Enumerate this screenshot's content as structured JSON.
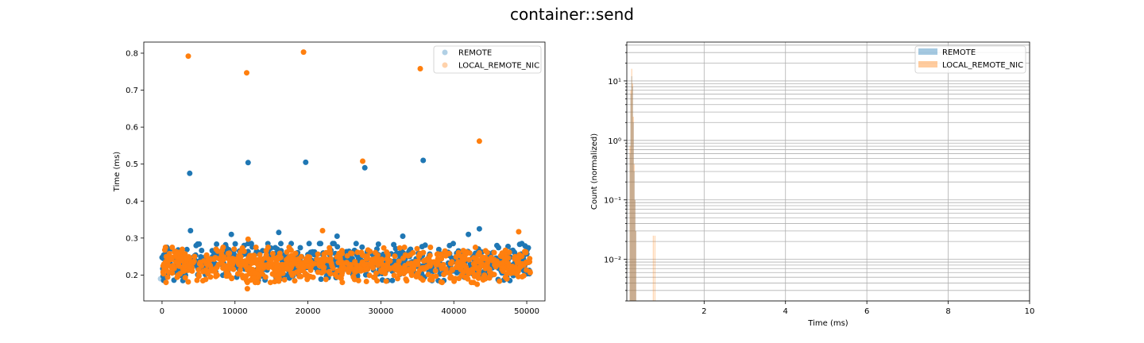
{
  "figure": {
    "title": "container::send"
  },
  "colors": {
    "remote": "#1f77b4",
    "local": "#ff7f0e",
    "grid": "#b0b0b0",
    "axes": "#000000"
  },
  "chart_data": [
    {
      "type": "scatter",
      "title": "",
      "xlabel": "",
      "ylabel": "Time (ms)",
      "xlim": [
        -2500,
        52500
      ],
      "ylim": [
        0.13,
        0.83
      ],
      "xticks": [
        0,
        10000,
        20000,
        30000,
        40000,
        50000
      ],
      "xtick_labels": [
        "0",
        "10000",
        "20000",
        "30000",
        "40000",
        "50000"
      ],
      "yticks": [
        0.2,
        0.3,
        0.4,
        0.5,
        0.6,
        0.7,
        0.8
      ],
      "ytick_labels": [
        "0.2",
        "0.3",
        "0.4",
        "0.5",
        "0.6",
        "0.7",
        "0.8"
      ],
      "grid": false,
      "legend_position": "top-right",
      "legend": [
        "REMOTE",
        "LOCAL_REMOTE_NIC"
      ],
      "series": [
        {
          "name": "REMOTE",
          "bulk": {
            "x_range": [
              0,
              50500
            ],
            "y_range": [
              0.185,
              0.285
            ],
            "count": 700
          },
          "outliers": [
            {
              "x": 3800,
              "y": 0.475
            },
            {
              "x": 11800,
              "y": 0.504
            },
            {
              "x": 19700,
              "y": 0.505
            },
            {
              "x": 27800,
              "y": 0.49
            },
            {
              "x": 35800,
              "y": 0.51
            },
            {
              "x": 3900,
              "y": 0.32
            },
            {
              "x": 43500,
              "y": 0.325
            },
            {
              "x": 16000,
              "y": 0.315
            },
            {
              "x": 24000,
              "y": 0.305
            },
            {
              "x": 33000,
              "y": 0.305
            },
            {
              "x": 9500,
              "y": 0.31
            },
            {
              "x": 42000,
              "y": 0.31
            }
          ]
        },
        {
          "name": "LOCAL_REMOTE_NIC",
          "bulk": {
            "x_range": [
              0,
              50500
            ],
            "y_range": [
              0.18,
              0.275
            ],
            "count": 800
          },
          "outliers": [
            {
              "x": 3600,
              "y": 0.792
            },
            {
              "x": 11600,
              "y": 0.747
            },
            {
              "x": 19400,
              "y": 0.803
            },
            {
              "x": 35400,
              "y": 0.758
            },
            {
              "x": 27500,
              "y": 0.508
            },
            {
              "x": 43500,
              "y": 0.562
            },
            {
              "x": 22000,
              "y": 0.32
            },
            {
              "x": 11800,
              "y": 0.297
            },
            {
              "x": 48900,
              "y": 0.317
            },
            {
              "x": 11700,
              "y": 0.163
            },
            {
              "x": 43200,
              "y": 0.175
            }
          ]
        }
      ]
    },
    {
      "type": "histogram",
      "title": "",
      "xlabel": "Time (ms)",
      "ylabel": "Count (normalized)",
      "yscale": "log",
      "xlim": [
        0.1,
        10
      ],
      "ylim": [
        0.002,
        45
      ],
      "xticks": [
        2,
        4,
        6,
        8,
        10
      ],
      "xtick_labels": [
        "2",
        "4",
        "6",
        "8",
        "10"
      ],
      "yticks": [
        0.01,
        0.1,
        1,
        10
      ],
      "ytick_labels": [
        "10⁻²",
        "10⁻¹",
        "10⁰",
        "10¹"
      ],
      "grid": true,
      "legend_position": "top-right",
      "legend": [
        "REMOTE",
        "LOCAL_REMOTE_NIC"
      ],
      "series": [
        {
          "name": "REMOTE",
          "bins": [
            {
              "x0": 0.17,
              "x1": 0.19,
              "value": 0.6
            },
            {
              "x0": 0.19,
              "x1": 0.21,
              "value": 6
            },
            {
              "x0": 0.21,
              "x1": 0.23,
              "value": 12
            },
            {
              "x0": 0.23,
              "x1": 0.25,
              "value": 8
            },
            {
              "x0": 0.25,
              "x1": 0.27,
              "value": 2
            },
            {
              "x0": 0.27,
              "x1": 0.29,
              "value": 0.3
            },
            {
              "x0": 0.29,
              "x1": 0.31,
              "value": 0.1
            },
            {
              "x0": 0.31,
              "x1": 0.33,
              "value": 0.03
            }
          ]
        },
        {
          "name": "LOCAL_REMOTE_NIC",
          "bins": [
            {
              "x0": 0.17,
              "x1": 0.19,
              "value": 0.8
            },
            {
              "x0": 0.19,
              "x1": 0.21,
              "value": 7
            },
            {
              "x0": 0.21,
              "x1": 0.23,
              "value": 16
            },
            {
              "x0": 0.23,
              "x1": 0.25,
              "value": 9
            },
            {
              "x0": 0.25,
              "x1": 0.27,
              "value": 2.5
            },
            {
              "x0": 0.27,
              "x1": 0.29,
              "value": 0.4
            },
            {
              "x0": 0.29,
              "x1": 0.31,
              "value": 0.1
            },
            {
              "x0": 0.31,
              "x1": 0.33,
              "value": 0.03
            },
            {
              "x0": 0.74,
              "x1": 0.76,
              "value": 0.025
            },
            {
              "x0": 0.78,
              "x1": 0.8,
              "value": 0.025
            }
          ]
        }
      ]
    }
  ]
}
